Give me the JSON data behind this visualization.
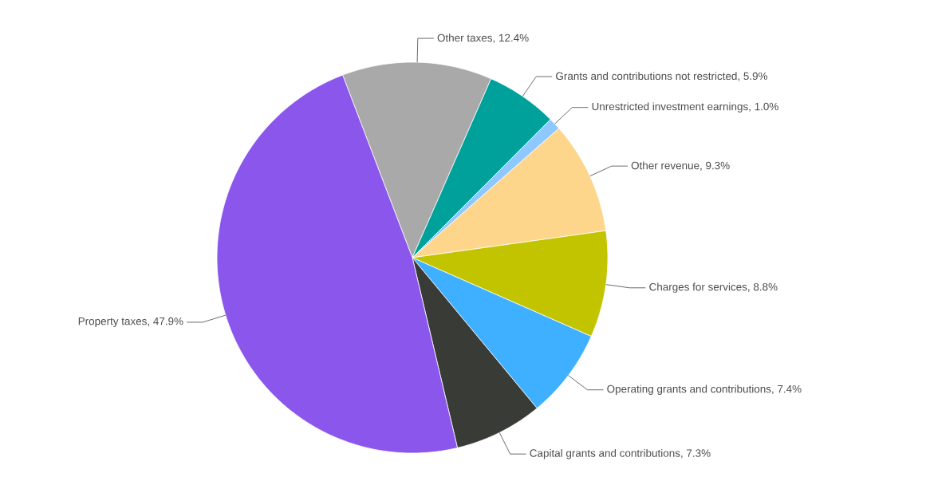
{
  "chart_data": {
    "type": "pie",
    "categories": [
      "Other taxes, 12.4%",
      "Grants and contributions not restricted, 5.9%",
      "Unrestricted investment earnings, 1.0%",
      "Other revenue, 9.3%",
      "Charges for services, 8.8%",
      "Operating grants and contributions, 7.4%",
      "Capital grants and contributions, 7.3%",
      "Property taxes, 47.9%"
    ],
    "values": [
      12.4,
      5.9,
      1.0,
      9.3,
      8.8,
      7.4,
      7.3,
      47.9
    ],
    "colors": [
      "#a9a9a9",
      "#00a19a",
      "#8fc8ff",
      "#fdd58b",
      "#c2c400",
      "#3fb0ff",
      "#393b36",
      "#8a56ec"
    ]
  }
}
